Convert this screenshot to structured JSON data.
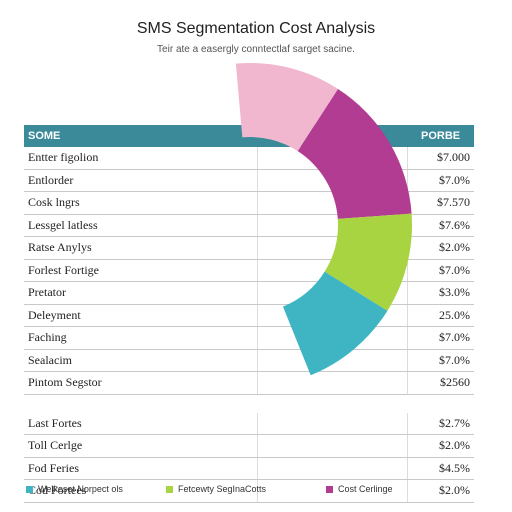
{
  "chart_data": {
    "type": "pie",
    "title": "SMS Segmentation Cost Analysis",
    "subtitle": "Teir ate a easergly conntectlaf sarget sacine.",
    "slices": [
      {
        "value": 1,
        "color": "#f0b7cf"
      },
      {
        "value": 1.4,
        "color": "#b13c92"
      },
      {
        "value": 0.95,
        "color": "#a9d442"
      },
      {
        "value": 0.95,
        "color": "#3fb5c4"
      }
    ],
    "table": {
      "headers": [
        "SOME",
        "PORBE"
      ],
      "group1": [
        {
          "name": "Entter figolion",
          "price": "$7.000"
        },
        {
          "name": "Entlorder",
          "price": "$7.0%"
        },
        {
          "name": "Cosk lngrs",
          "price": "$7.570"
        },
        {
          "name": "Lessgel latless",
          "price": "$7.6%"
        },
        {
          "name": "Ratse Anylys",
          "price": "$2.0%"
        },
        {
          "name": "Forlest Fortige",
          "price": "$7.0%"
        },
        {
          "name": "Pretator",
          "price": "$3.0%"
        },
        {
          "name": "Deleyment",
          "price": "25.0%"
        },
        {
          "name": "Faching",
          "price": "$7.0%"
        },
        {
          "name": "Sealacim",
          "price": "$7.0%"
        },
        {
          "name": "Pintom Segstor",
          "price": "$2560"
        }
      ],
      "group2": [
        {
          "name": "Last Fortes",
          "price": "$2.7%"
        },
        {
          "name": "Toll Cerlge",
          "price": "$2.0%"
        },
        {
          "name": "Fod Feries",
          "price": "$4.5%"
        },
        {
          "name": "Cod Fortees",
          "price": "$2.0%"
        }
      ]
    },
    "legend": [
      {
        "label": "Welkeset Norpect ols",
        "color": "#3fb5c4"
      },
      {
        "label": "Fetcewty SegInaCotts",
        "color": "#a9d442"
      },
      {
        "label": "Cost Cerlinge",
        "color": "#b13c92"
      }
    ]
  }
}
